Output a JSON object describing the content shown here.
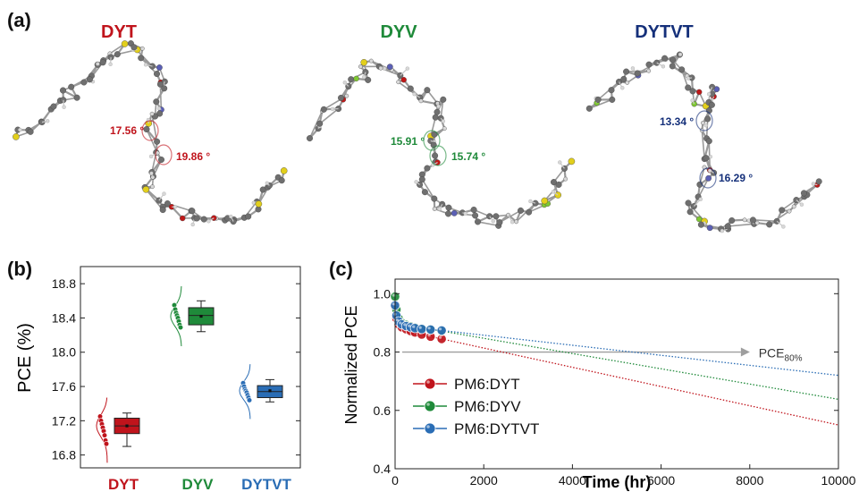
{
  "panel_a": {
    "label": "(a)",
    "molecules": [
      {
        "name": "DYT",
        "color": "#c0141c",
        "angles": [
          "17.56 °",
          "19.86 °"
        ]
      },
      {
        "name": "DYV",
        "color": "#1f8a3a",
        "angles": [
          "15.91 °",
          "15.74 °"
        ]
      },
      {
        "name": "DYTVT",
        "color": "#15307a",
        "angles": [
          "13.34 °",
          "16.29 °"
        ]
      }
    ],
    "atom_colors": {
      "carbon": "#6f6f6f",
      "hydrogen": "#d8d8d8",
      "sulfur": "#e2cf1c",
      "nitrogen": "#5b5fb5",
      "oxygen": "#c01818",
      "fluorine": "#7fc832"
    }
  },
  "chart_data": [
    {
      "panel": "(b)",
      "type": "box",
      "ylabel": "PCE (%)",
      "ylim": [
        16.65,
        19.0
      ],
      "yticks": [
        "16.8",
        "17.2",
        "17.6",
        "18.0",
        "18.4",
        "18.8"
      ],
      "categories": [
        "DYT",
        "DYV",
        "DYTVT"
      ],
      "colors": [
        "#c0141c",
        "#1f8a3a",
        "#2a6db5"
      ],
      "boxes": [
        {
          "min": 16.9,
          "q1": 17.05,
          "median": 17.14,
          "mean": 17.14,
          "q3": 17.23,
          "max": 17.29
        },
        {
          "min": 18.24,
          "q1": 18.32,
          "median": 18.43,
          "mean": 18.42,
          "q3": 18.52,
          "max": 18.6
        },
        {
          "min": 17.42,
          "q1": 17.47,
          "median": 17.54,
          "mean": 17.55,
          "q3": 17.61,
          "max": 17.68
        }
      ],
      "points": [
        [
          17.25,
          17.2,
          17.16,
          17.12,
          17.08,
          17.03,
          16.97,
          16.93
        ],
        [
          18.55,
          18.5,
          18.46,
          18.43,
          18.4,
          18.36,
          18.32,
          18.29
        ],
        [
          17.64,
          17.6,
          17.57,
          17.55,
          17.53,
          17.5,
          17.47,
          17.44
        ]
      ]
    },
    {
      "panel": "(c)",
      "type": "line",
      "xlabel": "Time (hr)",
      "ylabel": "Normalized PCE",
      "xlim": [
        0,
        10000
      ],
      "ylim": [
        0.4,
        1.05
      ],
      "xticks": [
        "0",
        "2000",
        "4000",
        "6000",
        "8000",
        "10000"
      ],
      "yticks": [
        "0.4",
        "0.6",
        "0.8",
        "1.0"
      ],
      "reference": {
        "y": 0.8,
        "label": "PCE",
        "sub": "80%"
      },
      "series": [
        {
          "name": "PM6:DYT",
          "color": "#c0141c",
          "x": [
            0,
            30,
            80,
            150,
            250,
            350,
            450,
            600,
            800,
            1050
          ],
          "y": [
            0.955,
            0.915,
            0.895,
            0.885,
            0.878,
            0.872,
            0.867,
            0.86,
            0.853,
            0.845
          ],
          "fit": [
            [
              1050,
              0.845
            ],
            [
              10000,
              0.55
            ]
          ]
        },
        {
          "name": "PM6:DYV",
          "color": "#1f8a3a",
          "x": [
            0,
            30,
            80,
            150,
            250,
            350,
            450,
            600,
            800,
            1050
          ],
          "y": [
            0.99,
            0.945,
            0.915,
            0.9,
            0.893,
            0.888,
            0.884,
            0.88,
            0.877,
            0.872
          ],
          "fit": [
            [
              1050,
              0.872
            ],
            [
              10000,
              0.638
            ]
          ]
        },
        {
          "name": "PM6:DYTVT",
          "color": "#2a6db5",
          "x": [
            0,
            30,
            80,
            150,
            250,
            350,
            450,
            600,
            800,
            1050
          ],
          "y": [
            0.96,
            0.925,
            0.905,
            0.895,
            0.889,
            0.885,
            0.882,
            0.879,
            0.877,
            0.874
          ],
          "fit": [
            [
              1050,
              0.874
            ],
            [
              10000,
              0.72
            ]
          ]
        }
      ]
    }
  ]
}
